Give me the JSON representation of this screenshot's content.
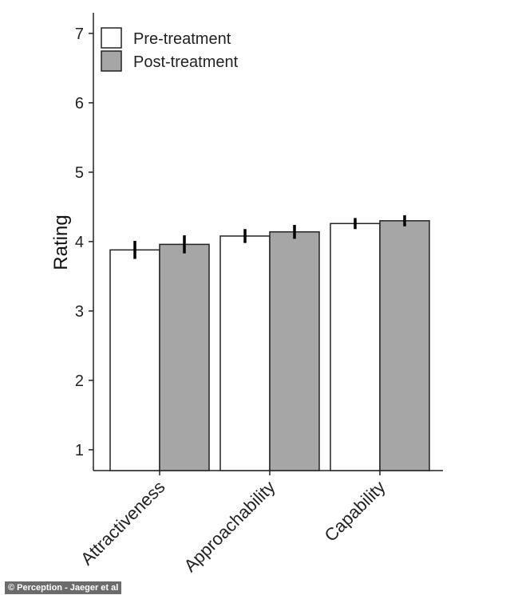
{
  "chart_data": {
    "type": "bar",
    "categories": [
      "Attractiveness",
      "Approachability",
      "Capability"
    ],
    "series": [
      {
        "name": "Pre-treatment",
        "values": [
          3.88,
          4.08,
          4.26
        ],
        "errors": [
          0.13,
          0.1,
          0.08
        ],
        "color": "#ffffff"
      },
      {
        "name": "Post-treatment",
        "values": [
          3.96,
          4.14,
          4.3
        ],
        "errors": [
          0.13,
          0.1,
          0.08
        ],
        "color": "#a6a6a6"
      }
    ],
    "ylabel": "Rating",
    "xlabel": "",
    "title": "",
    "ylim": [
      0.7,
      7.3
    ],
    "yticks": [
      1,
      2,
      3,
      4,
      5,
      6,
      7
    ],
    "grid": false,
    "legend_position": "top-left"
  },
  "credit": "© Perception - Jaeger et al"
}
